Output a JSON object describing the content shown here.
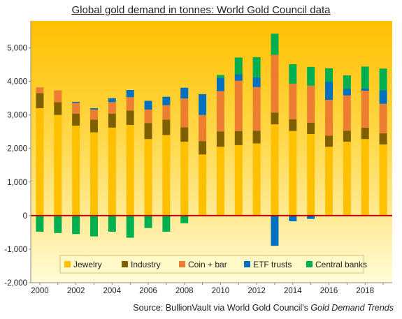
{
  "chart_data": {
    "type": "bar",
    "stacked": true,
    "title": "Global gold demand in tonnes: World Gold Council data",
    "xlabel": "",
    "ylabel": "",
    "categories": [
      "2000",
      "2001",
      "2002",
      "2003",
      "2004",
      "2005",
      "2006",
      "2007",
      "2008",
      "2009",
      "2010",
      "2011",
      "2012",
      "2013",
      "2014",
      "2015",
      "2016",
      "2017",
      "2018",
      "2019"
    ],
    "x_tick_labels": [
      "2000",
      "2002",
      "2004",
      "2006",
      "2008",
      "2010",
      "2012",
      "2014",
      "2016",
      "2018"
    ],
    "y_tick_labels": [
      "-2,000",
      "-1,000",
      "0",
      "1,000",
      "2,000",
      "3,000",
      "4,000",
      "5,000"
    ],
    "ylim": [
      -2000,
      5800
    ],
    "grid": false,
    "legend_position": "bottom-center",
    "zero_line_color": "#c00000",
    "series": [
      {
        "name": "Jewelry",
        "color": "#ffc000",
        "values": [
          3200,
          3000,
          2680,
          2480,
          2620,
          2700,
          2280,
          2400,
          2200,
          1820,
          2050,
          2100,
          2150,
          2720,
          2520,
          2430,
          2050,
          2200,
          2280,
          2120
        ]
      },
      {
        "name": "Industry",
        "color": "#7f6000",
        "values": [
          450,
          380,
          360,
          380,
          420,
          430,
          480,
          460,
          430,
          400,
          460,
          420,
          380,
          350,
          350,
          340,
          330,
          330,
          340,
          330
        ]
      },
      {
        "name": "Coin + bar",
        "color": "#ed7d31",
        "values": [
          170,
          350,
          320,
          300,
          340,
          400,
          400,
          430,
          860,
          780,
          1200,
          1500,
          1300,
          1720,
          1060,
          1100,
          1070,
          1050,
          1100,
          880
        ]
      },
      {
        "name": "ETF trusts",
        "color": "#0070c0",
        "values": [
          0,
          0,
          30,
          40,
          120,
          210,
          260,
          250,
          320,
          620,
          400,
          190,
          290,
          -900,
          -170,
          -100,
          540,
          200,
          70,
          400
        ]
      },
      {
        "name": "Central banks",
        "color": "#00b050",
        "values": [
          -480,
          -520,
          -550,
          -620,
          -480,
          -660,
          -370,
          -480,
          -230,
          0,
          80,
          500,
          600,
          630,
          580,
          560,
          400,
          400,
          650,
          650
        ]
      }
    ]
  },
  "source": {
    "prefix": "Source:  BullionVault via  World Gold Council's ",
    "italic": "Gold Demand Trends"
  }
}
